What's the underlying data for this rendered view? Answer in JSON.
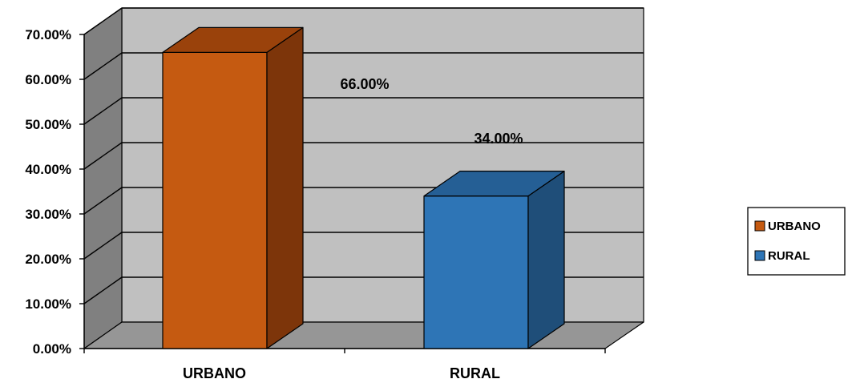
{
  "chart_data": {
    "type": "bar",
    "categories": [
      "URBANO",
      "RURAL"
    ],
    "values": [
      0.66,
      0.34
    ],
    "data_labels": [
      "66.00%",
      "34.00%"
    ],
    "ylim": [
      0,
      0.7
    ],
    "yticks": [
      0,
      0.1,
      0.2,
      0.3,
      0.4,
      0.5,
      0.6,
      0.7
    ],
    "ytick_labels": [
      "0.00%",
      "10.00%",
      "20.00%",
      "30.00%",
      "40.00%",
      "50.00%",
      "60.00%",
      "70.00%"
    ],
    "grid": true,
    "three_d": true,
    "legend": {
      "placement": "right",
      "entries": [
        {
          "label": "URBANO",
          "color": "#c55a11"
        },
        {
          "label": "RURAL",
          "color": "#2e75b6"
        }
      ]
    },
    "colors": {
      "bars": [
        "#c55a11",
        "#2e75b6"
      ],
      "bar_tops": [
        "#9a420b",
        "#255f95"
      ],
      "bar_sides": [
        "#7d350a",
        "#1f4e79"
      ],
      "back_wall": "#c0c0c0",
      "side_wall": "#808080",
      "floor": "#969696"
    }
  }
}
